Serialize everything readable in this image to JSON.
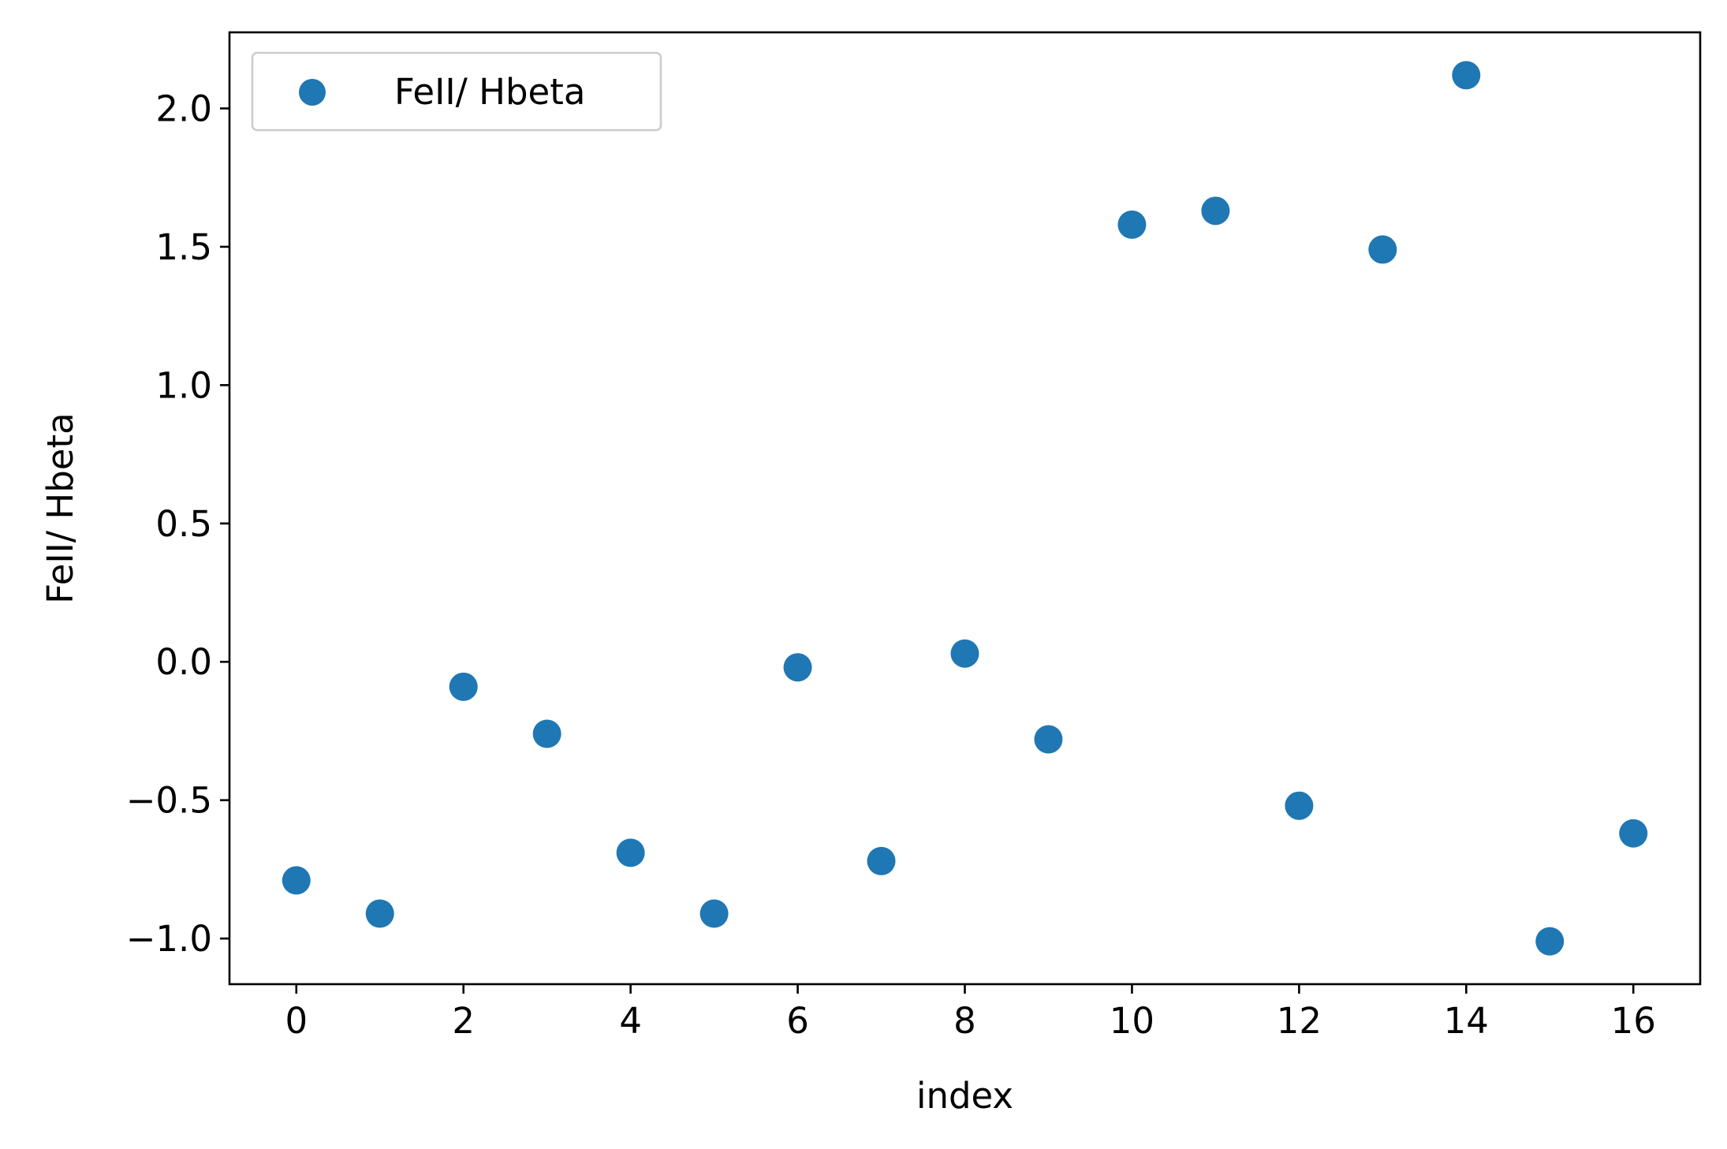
{
  "chart_data": {
    "type": "scatter",
    "title": "",
    "xlabel": "index",
    "ylabel": "FeII/ Hbeta",
    "xlim": [
      -0.8,
      16.8
    ],
    "ylim": [
      -1.165,
      2.275
    ],
    "xticks": [
      0,
      2,
      4,
      6,
      8,
      10,
      12,
      14,
      16
    ],
    "xtick_labels": [
      "0",
      "2",
      "4",
      "6",
      "8",
      "10",
      "12",
      "14",
      "16"
    ],
    "yticks": [
      -1.0,
      -0.5,
      0.0,
      0.5,
      1.0,
      1.5,
      2.0
    ],
    "ytick_labels": [
      "−1.0",
      "−0.5",
      "0.0",
      "0.5",
      "1.0",
      "1.5",
      "2.0"
    ],
    "grid": false,
    "legend_position": "top-left",
    "series": [
      {
        "name": "FeII/ Hbeta",
        "color": "#1f77b4",
        "x": [
          0,
          1,
          2,
          3,
          4,
          5,
          6,
          7,
          8,
          9,
          10,
          11,
          12,
          13,
          14,
          15,
          16
        ],
        "y": [
          -0.79,
          -0.91,
          -0.09,
          -0.26,
          -0.69,
          -0.91,
          -0.02,
          -0.72,
          0.03,
          -0.28,
          1.58,
          1.63,
          -0.52,
          1.49,
          2.12,
          -1.01,
          -0.62
        ]
      }
    ]
  }
}
